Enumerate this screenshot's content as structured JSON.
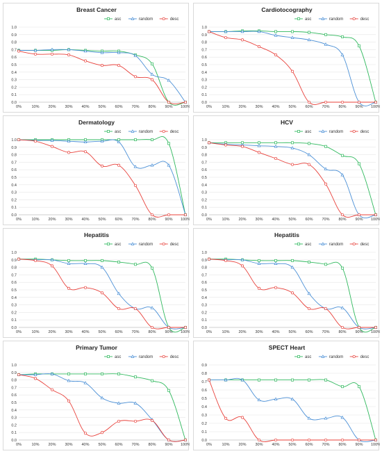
{
  "colors": {
    "asc": "#2eb85c",
    "random": "#4a8fd6",
    "desc": "#e8403a"
  },
  "chart_data": [
    {
      "type": "line",
      "title": "Breast Cancer",
      "categories": [
        "0%",
        "10%",
        "20%",
        "30%",
        "40%",
        "50%",
        "60%",
        "70%",
        "80%",
        "90%",
        "100%"
      ],
      "ylim": [
        0,
        1.0
      ],
      "yticks": [
        "0.0",
        "0.1",
        "0.2",
        "0.3",
        "0.4",
        "0.5",
        "0.6",
        "0.7",
        "0.8",
        "0.9",
        "1.0"
      ],
      "legend": "top-right",
      "series": [
        {
          "name": "asc",
          "values": [
            0.69,
            0.69,
            0.69,
            0.7,
            0.69,
            0.68,
            0.68,
            0.63,
            0.51,
            0.0,
            0.0
          ]
        },
        {
          "name": "random",
          "values": [
            0.69,
            0.69,
            0.7,
            0.7,
            0.68,
            0.66,
            0.66,
            0.62,
            0.37,
            0.29,
            0.0
          ]
        },
        {
          "name": "desc",
          "values": [
            0.68,
            0.64,
            0.64,
            0.63,
            0.55,
            0.49,
            0.49,
            0.34,
            0.3,
            0.0,
            0.0
          ]
        }
      ]
    },
    {
      "type": "line",
      "title": "Cardiotocography",
      "categories": [
        "0%",
        "10%",
        "20%",
        "30%",
        "40%",
        "50%",
        "60%",
        "70%",
        "80%",
        "90%",
        "100%"
      ],
      "ylim": [
        0,
        1.0
      ],
      "yticks": [
        "0.0",
        "0.1",
        "0.2",
        "0.3",
        "0.4",
        "0.5",
        "0.6",
        "0.7",
        "0.8",
        "0.9",
        "1.0"
      ],
      "legend": "top-right",
      "series": [
        {
          "name": "asc",
          "values": [
            0.94,
            0.94,
            0.95,
            0.95,
            0.94,
            0.94,
            0.93,
            0.9,
            0.87,
            0.75,
            0.0
          ]
        },
        {
          "name": "random",
          "values": [
            0.94,
            0.94,
            0.94,
            0.94,
            0.89,
            0.86,
            0.83,
            0.77,
            0.63,
            0.0,
            0.0
          ]
        },
        {
          "name": "desc",
          "values": [
            0.94,
            0.86,
            0.83,
            0.74,
            0.63,
            0.41,
            0.0,
            0.0,
            0.0,
            0.0,
            0.0
          ]
        }
      ]
    },
    {
      "type": "line",
      "title": "Dermatology",
      "categories": [
        "0%",
        "10%",
        "20%",
        "30%",
        "40%",
        "50%",
        "60%",
        "70%",
        "80%",
        "90%",
        "100%"
      ],
      "ylim": [
        0,
        1.0
      ],
      "yticks": [
        "0.0",
        "0.1",
        "0.2",
        "0.3",
        "0.4",
        "0.5",
        "0.6",
        "0.7",
        "0.8",
        "0.9",
        "1.0"
      ],
      "legend": "top-right",
      "series": [
        {
          "name": "asc",
          "values": [
            1.0,
            1.0,
            1.0,
            1.0,
            1.0,
            1.0,
            1.0,
            1.0,
            1.0,
            0.95,
            0.0
          ]
        },
        {
          "name": "random",
          "values": [
            1.0,
            0.99,
            0.99,
            0.98,
            0.97,
            0.98,
            0.97,
            0.64,
            0.66,
            0.66,
            0.0
          ]
        },
        {
          "name": "desc",
          "values": [
            1.0,
            0.98,
            0.91,
            0.83,
            0.84,
            0.65,
            0.66,
            0.39,
            0.0,
            0.0,
            0.0
          ]
        }
      ]
    },
    {
      "type": "line",
      "title": "HCV",
      "categories": [
        "0%",
        "10%",
        "20%",
        "30%",
        "40%",
        "50%",
        "60%",
        "70%",
        "80%",
        "90%",
        "100%"
      ],
      "ylim": [
        0,
        1.0
      ],
      "yticks": [
        "0.0",
        "0.1",
        "0.2",
        "0.3",
        "0.4",
        "0.5",
        "0.6",
        "0.7",
        "0.8",
        "0.9",
        "1.0"
      ],
      "legend": "top-right",
      "series": [
        {
          "name": "asc",
          "values": [
            0.96,
            0.96,
            0.96,
            0.96,
            0.96,
            0.96,
            0.95,
            0.91,
            0.79,
            0.68,
            0.0
          ]
        },
        {
          "name": "random",
          "values": [
            0.96,
            0.94,
            0.93,
            0.92,
            0.91,
            0.89,
            0.8,
            0.61,
            0.53,
            0.0,
            0.0
          ]
        },
        {
          "name": "desc",
          "values": [
            0.96,
            0.93,
            0.91,
            0.83,
            0.75,
            0.67,
            0.67,
            0.41,
            0.0,
            0.0,
            0.0
          ]
        }
      ]
    },
    {
      "type": "line",
      "title": "Hepatitis",
      "categories": [
        "0%",
        "10%",
        "20%",
        "30%",
        "40%",
        "50%",
        "60%",
        "70%",
        "80%",
        "90%",
        "100%"
      ],
      "ylim": [
        0,
        1.0
      ],
      "yticks": [
        "0.0",
        "0.1",
        "0.2",
        "0.3",
        "0.4",
        "0.5",
        "0.6",
        "0.7",
        "0.8",
        "0.9",
        "1.0"
      ],
      "legend": "top-right",
      "series": [
        {
          "name": "asc",
          "values": [
            0.91,
            0.91,
            0.9,
            0.89,
            0.89,
            0.89,
            0.87,
            0.84,
            0.79,
            0.0,
            0.0
          ]
        },
        {
          "name": "random",
          "values": [
            0.91,
            0.9,
            0.9,
            0.85,
            0.85,
            0.8,
            0.45,
            0.25,
            0.26,
            0.0,
            0.0
          ]
        },
        {
          "name": "desc",
          "values": [
            0.91,
            0.89,
            0.82,
            0.52,
            0.53,
            0.46,
            0.25,
            0.25,
            0.0,
            0.0,
            0.0
          ]
        }
      ]
    },
    {
      "type": "line",
      "title": "Hepatitis",
      "categories": [
        "0%",
        "10%",
        "20%",
        "30%",
        "40%",
        "50%",
        "60%",
        "70%",
        "80%",
        "90%",
        "100%"
      ],
      "ylim": [
        0,
        1.0
      ],
      "yticks": [
        "0.0",
        "0.1",
        "0.2",
        "0.3",
        "0.4",
        "0.5",
        "0.6",
        "0.7",
        "0.8",
        "0.9",
        "1.0"
      ],
      "legend": "top-right",
      "series": [
        {
          "name": "asc",
          "values": [
            0.91,
            0.91,
            0.9,
            0.89,
            0.89,
            0.89,
            0.87,
            0.84,
            0.79,
            0.0,
            0.0
          ]
        },
        {
          "name": "random",
          "values": [
            0.91,
            0.9,
            0.9,
            0.85,
            0.85,
            0.8,
            0.45,
            0.25,
            0.26,
            0.0,
            0.0
          ]
        },
        {
          "name": "desc",
          "values": [
            0.91,
            0.89,
            0.82,
            0.52,
            0.53,
            0.46,
            0.25,
            0.25,
            0.0,
            0.0,
            0.0
          ]
        }
      ]
    },
    {
      "type": "line",
      "title": "Primary Tumor",
      "categories": [
        "0%",
        "10%",
        "20%",
        "30%",
        "40%",
        "50%",
        "60%",
        "70%",
        "80%",
        "90%",
        "100%"
      ],
      "ylim": [
        0,
        1.0
      ],
      "yticks": [
        "0.0",
        "0.1",
        "0.2",
        "0.3",
        "0.4",
        "0.5",
        "0.6",
        "0.7",
        "0.8",
        "0.9",
        "1.0"
      ],
      "legend": "top-right",
      "series": [
        {
          "name": "asc",
          "values": [
            0.87,
            0.88,
            0.88,
            0.88,
            0.88,
            0.88,
            0.88,
            0.84,
            0.79,
            0.66,
            0.0
          ]
        },
        {
          "name": "random",
          "values": [
            0.87,
            0.87,
            0.88,
            0.79,
            0.76,
            0.56,
            0.49,
            0.49,
            0.27,
            0.0,
            0.0
          ]
        },
        {
          "name": "desc",
          "values": [
            0.87,
            0.82,
            0.67,
            0.52,
            0.09,
            0.1,
            0.25,
            0.25,
            0.26,
            0.0,
            0.0
          ]
        }
      ]
    },
    {
      "type": "line",
      "title": "SPECT Heart",
      "categories": [
        "0%",
        "10%",
        "20%",
        "30%",
        "40%",
        "50%",
        "60%",
        "70%",
        "80%",
        "90%",
        "100%"
      ],
      "ylim": [
        0,
        0.9
      ],
      "yticks": [
        "0.0",
        "0.1",
        "0.2",
        "0.3",
        "0.4",
        "0.5",
        "0.6",
        "0.7",
        "0.8",
        "0.9"
      ],
      "legend": "top-right",
      "series": [
        {
          "name": "asc",
          "values": [
            0.72,
            0.72,
            0.72,
            0.72,
            0.72,
            0.72,
            0.72,
            0.72,
            0.64,
            0.64,
            0.0
          ]
        },
        {
          "name": "random",
          "values": [
            0.72,
            0.72,
            0.72,
            0.48,
            0.49,
            0.49,
            0.26,
            0.26,
            0.27,
            0.0,
            0.0
          ]
        },
        {
          "name": "desc",
          "values": [
            0.72,
            0.26,
            0.27,
            0.0,
            0.0,
            0.0,
            0.0,
            0.0,
            0.0,
            0.0,
            0.0
          ]
        }
      ]
    }
  ]
}
